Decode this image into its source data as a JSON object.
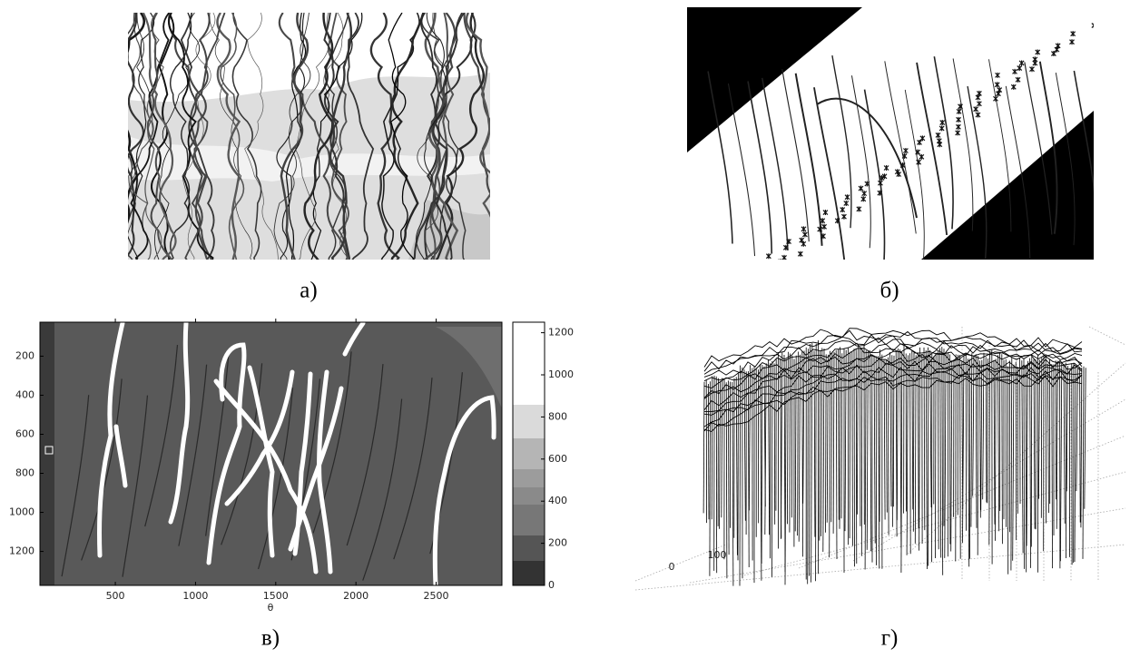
{
  "panels": [
    {
      "caption": "а)"
    },
    {
      "caption": "б)"
    },
    {
      "caption": "в)",
      "xlabel": "θ",
      "xlim": [
        30,
        2910
      ],
      "ylim": [
        26,
        1374
      ],
      "xticks": [
        500,
        1000,
        1500,
        2000,
        2500
      ],
      "yticks": [
        200,
        400,
        600,
        800,
        1000,
        1200
      ],
      "colorbar": {
        "lim": [
          0,
          1250
        ],
        "ticks": [
          0,
          200,
          400,
          600,
          800,
          1000,
          1200
        ]
      }
    },
    {
      "caption": "г)",
      "axis_labels": [
        100,
        0
      ]
    }
  ]
}
